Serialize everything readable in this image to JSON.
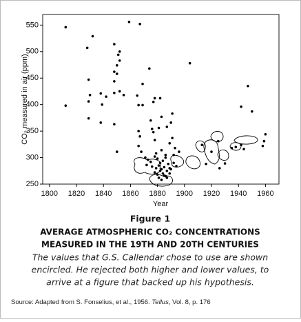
{
  "chart_data": {
    "type": "scatter",
    "ylabel": "CO₂ measured in air (ppm)",
    "xlabel": "Year",
    "x": [
      1812,
      1812,
      1828,
      1829,
      1829,
      1832,
      1830,
      1829,
      1838,
      1839,
      1838,
      1848,
      1852,
      1851,
      1852,
      1850,
      1848,
      1850,
      1848,
      1848,
      1852,
      1855,
      1842,
      1848,
      1850,
      1859,
      1867,
      1869,
      1874,
      1865,
      1866,
      1869,
      1878,
      1882,
      1877,
      1875,
      1876,
      1877,
      1881,
      1883,
      1878,
      1866,
      1867,
      1866,
      1868,
      1891,
      1890,
      1887,
      1891,
      1889,
      1893,
      1896,
      1892,
      1871,
      1873,
      1875,
      1878,
      1880,
      1882,
      1884,
      1886,
      1888,
      1872,
      1876,
      1879,
      1881,
      1883,
      1885,
      1887,
      1889,
      1878,
      1880,
      1882,
      1884,
      1886,
      1890,
      1892,
      1894,
      1881,
      1883,
      1885,
      1887,
      1889,
      1879,
      1883,
      1886,
      1904,
      1913,
      1916,
      1920,
      1925,
      1930,
      1935,
      1942,
      1942,
      1947,
      1950,
      1960,
      1959,
      1958,
      1926,
      1938,
      1944
    ],
    "values": [
      546,
      398,
      507,
      447,
      406,
      529,
      418,
      374,
      421,
      400,
      366,
      514,
      500,
      494,
      483,
      474,
      462,
      458,
      444,
      422,
      425,
      418,
      415,
      363,
      311,
      556,
      552,
      439,
      468,
      417,
      399,
      399,
      412,
      412,
      405,
      370,
      354,
      348,
      356,
      377,
      333,
      350,
      340,
      322,
      311,
      383,
      366,
      358,
      337,
      327,
      318,
      311,
      305,
      300,
      296,
      292,
      302,
      298,
      290,
      294,
      300,
      288,
      286,
      283,
      280,
      285,
      278,
      282,
      275,
      280,
      272,
      268,
      275,
      270,
      265,
      278,
      290,
      284,
      262,
      258,
      266,
      262,
      270,
      308,
      314,
      305,
      478,
      324,
      288,
      311,
      331,
      289,
      318,
      324,
      396,
      435,
      387,
      344,
      331,
      322,
      280,
      320,
      316
    ],
    "color": "#000000",
    "xlim": [
      1795,
      1970
    ],
    "ylim": [
      250,
      570
    ],
    "xticks": [
      1800,
      1820,
      1840,
      1860,
      1880,
      1900,
      1920,
      1940,
      1960
    ],
    "yticks": [
      250,
      300,
      350,
      400,
      450,
      500,
      550
    ]
  },
  "caption": {
    "figure": "Figure 1",
    "heading": [
      "AVERAGE ATMOSPHERIC CO₂ CONCENTRATIONS",
      "MEASURED IN THE 19TH AND 20TH CENTURIES"
    ],
    "description": [
      "The values that G.S. Callendar chose to use are shown",
      "encircled. He rejected both higher and lower values, to",
      "arrive at a figure that backed up his hypothesis."
    ],
    "source_prefix": "Source: Adapted from S. Fonselius, et al., 1956. ",
    "source_journal": "Tellus",
    "source_suffix": ", Vol. 8, p. 176"
  }
}
